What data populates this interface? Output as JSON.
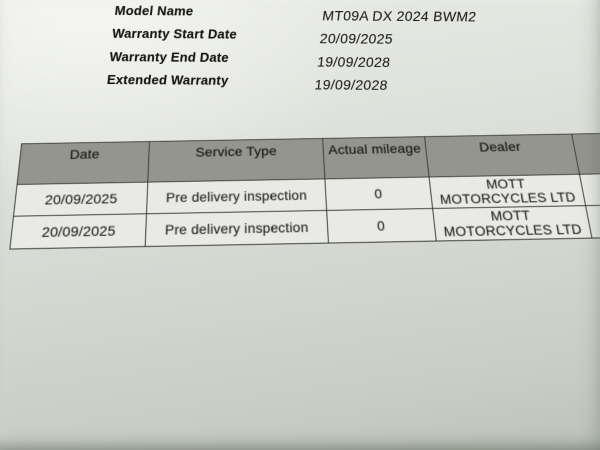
{
  "colors": {
    "ink": "#1e1e1b",
    "paper_light": "#eceee9",
    "paper_dark": "#bfc4bd",
    "table_header_fill": "#94958e",
    "table_row_fill": "#e9eae5",
    "table_border": "#3f3f39"
  },
  "document": {
    "meta_fields": [
      {
        "label": "Model Name",
        "value": "MT09A DX 2024 BWM2"
      },
      {
        "label": "Warranty Start Date",
        "value": "20/09/2025"
      },
      {
        "label": "Warranty End Date",
        "value": "19/09/2028"
      },
      {
        "label": "Extended Warranty",
        "value": "19/09/2028"
      }
    ],
    "service_table": {
      "columns": [
        "Date",
        "Service Type",
        "Actual mileage",
        "Dealer"
      ],
      "rows": [
        {
          "date": "20/09/2025",
          "service_type": "Pre delivery inspection",
          "actual_mileage": "0",
          "dealer": "MOTT MOTORCYCLES LTD"
        },
        {
          "date": "20/09/2025",
          "service_type": "Pre delivery inspection",
          "actual_mileage": "0",
          "dealer": "MOTT MOTORCYCLES LTD"
        }
      ]
    }
  }
}
